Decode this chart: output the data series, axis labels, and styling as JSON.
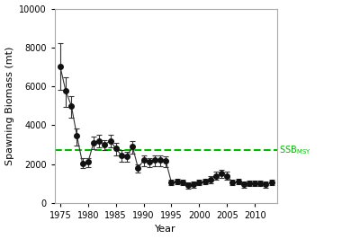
{
  "title": "",
  "xlabel": "Year",
  "ylabel": "Spawning Biomass (mt)",
  "ssb_msy_value": 2700,
  "dashed_line_color": "#00bb00",
  "ylim": [
    0,
    10000
  ],
  "xlim": [
    1974,
    2014
  ],
  "years": [
    1975,
    1976,
    1977,
    1978,
    1979,
    1980,
    1981,
    1982,
    1983,
    1984,
    1985,
    1986,
    1987,
    1988,
    1989,
    1990,
    1991,
    1992,
    1993,
    1994,
    1995,
    1996,
    1997,
    1998,
    1999,
    2000,
    2001,
    2002,
    2003,
    2004,
    2005,
    2006,
    2007,
    2008,
    2009,
    2010,
    2011,
    2012,
    2013
  ],
  "values": [
    7000,
    5750,
    5000,
    3450,
    2050,
    2100,
    3100,
    3200,
    3000,
    3200,
    2800,
    2450,
    2400,
    2900,
    1800,
    2200,
    2100,
    2200,
    2200,
    2150,
    1050,
    1100,
    1050,
    900,
    950,
    1050,
    1100,
    1200,
    1400,
    1500,
    1400,
    1050,
    1100,
    950,
    1000,
    1000,
    1000,
    950,
    1050
  ],
  "yerr_lower": [
    1200,
    800,
    600,
    500,
    250,
    250,
    350,
    350,
    300,
    350,
    350,
    350,
    300,
    350,
    250,
    300,
    250,
    300,
    300,
    300,
    150,
    150,
    150,
    150,
    150,
    150,
    150,
    200,
    200,
    200,
    200,
    150,
    150,
    150,
    150,
    150,
    150,
    150,
    150
  ],
  "yerr_upper": [
    1200,
    700,
    500,
    400,
    250,
    200,
    300,
    300,
    250,
    300,
    300,
    250,
    250,
    300,
    200,
    250,
    200,
    250,
    250,
    250,
    150,
    150,
    150,
    150,
    150,
    150,
    150,
    200,
    200,
    200,
    200,
    150,
    150,
    150,
    150,
    150,
    150,
    150,
    150
  ],
  "line_color": "#333333",
  "marker_facecolor": "#111111",
  "marker_edgecolor": "#111111",
  "marker_size": 4,
  "line_width": 0.8,
  "elinewidth": 0.8,
  "capsize": 2,
  "yticks": [
    0,
    2000,
    4000,
    6000,
    8000,
    10000
  ],
  "xticks": [
    1975,
    1980,
    1985,
    1990,
    1995,
    2000,
    2005,
    2010
  ],
  "background_color": "#ffffff",
  "tick_label_color": "#000000",
  "axis_label_color": "#000000",
  "label_fontsize": 8,
  "tick_fontsize": 7
}
